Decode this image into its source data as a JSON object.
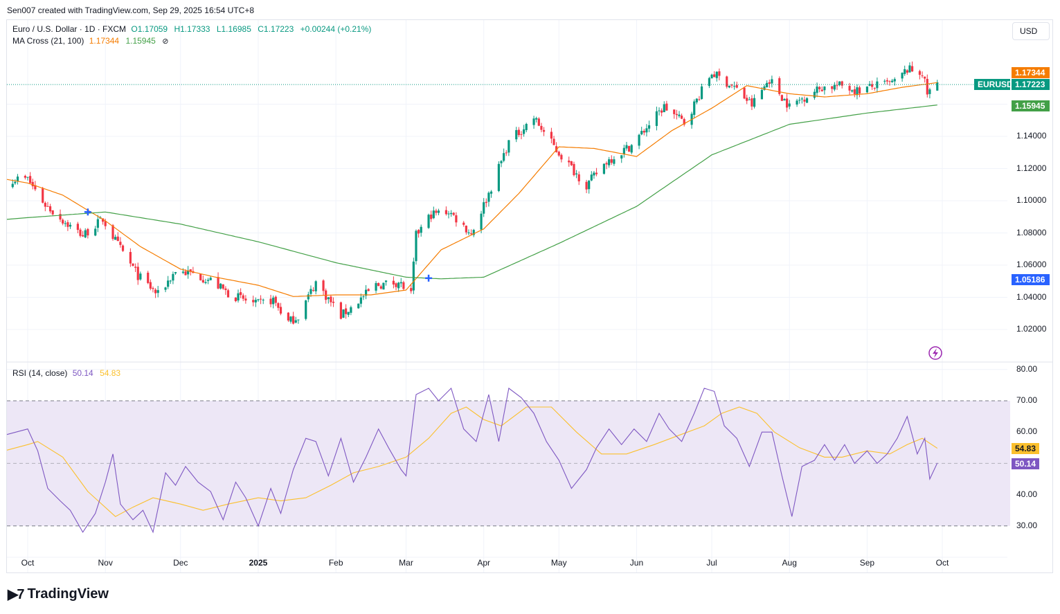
{
  "header": {
    "credit": "Sen007 created with TradingView.com, Sep 29, 2025 16:54 UTC+8"
  },
  "symbol": {
    "name": "Euro / U.S. Dollar · 1D · FXCM",
    "open": "O1.17059",
    "high": "H1.17333",
    "low": "L1.16985",
    "close": "C1.17223",
    "change": "+0.00244 (+0.21%)"
  },
  "ma_legend": {
    "label": "MA Cross (21, 100)",
    "fast": "1.17344",
    "slow": "1.15945",
    "icon": "hidden-eye-icon"
  },
  "rsi_legend": {
    "label": "RSI (14, close)",
    "rsi": "50.14",
    "ma": "54.83"
  },
  "currency_button": "USD",
  "price_tags": {
    "fast_ma": "1.17344",
    "symbol": "EURUSD",
    "last": "1.17223",
    "slow_ma": "1.15945",
    "cross": "1.05186",
    "rsi": "50.14",
    "rsi_ma": "54.83"
  },
  "colors": {
    "up": "#089981",
    "down": "#f23645",
    "fast_ma": "#f57c00",
    "slow_ma": "#43a047",
    "rsi": "#7e57c2",
    "rsi_ma": "#fbc02d",
    "rsi_band": "#ede7f6",
    "cross": "#2962ff"
  },
  "brand": "TradingView",
  "chart_data": [
    {
      "type": "candlestick",
      "title": "Euro / U.S. Dollar · 1D · FXCM",
      "y_ticks": [
        "1.14000",
        "1.12000",
        "1.10000",
        "1.08000",
        "1.06000",
        "1.04000",
        "1.02000"
      ],
      "ylim": [
        1.0075,
        1.1875
      ],
      "x_ticks": [
        "Oct",
        "Nov",
        "Dec",
        "2025",
        "Feb",
        "Mar",
        "Apr",
        "May",
        "Jun",
        "Jul",
        "Aug",
        "Sep",
        "Oct"
      ],
      "series": [
        {
          "name": "EURUSD",
          "close_anchors": [
            [
              "2024-10-01",
              1.1135
            ],
            [
              "2024-10-08",
              1.0975
            ],
            [
              "2024-10-16",
              1.0865
            ],
            [
              "2024-10-23",
              1.0785
            ],
            [
              "2024-10-31",
              1.0885
            ],
            [
              "2024-11-06",
              1.0725
            ],
            [
              "2024-11-14",
              1.0535
            ],
            [
              "2024-11-22",
              1.0415
            ],
            [
              "2024-11-29",
              1.0565
            ],
            [
              "2024-12-06",
              1.0545
            ],
            [
              "2024-12-13",
              1.0505
            ],
            [
              "2024-12-20",
              1.0425
            ],
            [
              "2024-12-31",
              1.0355
            ],
            [
              "2025-01-07",
              1.0385
            ],
            [
              "2025-01-13",
              1.0245
            ],
            [
              "2025-01-17",
              1.0285
            ],
            [
              "2025-01-24",
              1.0495
            ],
            [
              "2025-02-03",
              1.0285
            ],
            [
              "2025-02-07",
              1.0335
            ],
            [
              "2025-02-17",
              1.0475
            ],
            [
              "2025-02-26",
              1.0495
            ],
            [
              "2025-03-03",
              1.0415
            ],
            [
              "2025-03-05",
              1.0785
            ],
            [
              "2025-03-11",
              1.0915
            ],
            [
              "2025-03-18",
              1.0935
            ],
            [
              "2025-03-27",
              1.0795
            ],
            [
              "2025-04-03",
              1.1045
            ],
            [
              "2025-04-11",
              1.1365
            ],
            [
              "2025-04-21",
              1.1515
            ],
            [
              "2025-04-30",
              1.1315
            ],
            [
              "2025-05-12",
              1.1095
            ],
            [
              "2025-05-20",
              1.1245
            ],
            [
              "2025-05-30",
              1.1345
            ],
            [
              "2025-06-12",
              1.1585
            ],
            [
              "2025-06-20",
              1.1485
            ],
            [
              "2025-07-01",
              1.1795
            ],
            [
              "2025-07-10",
              1.1705
            ],
            [
              "2025-07-17",
              1.1595
            ],
            [
              "2025-07-24",
              1.1755
            ],
            [
              "2025-08-01",
              1.1585
            ],
            [
              "2025-08-08",
              1.1655
            ],
            [
              "2025-08-14",
              1.1705
            ],
            [
              "2025-08-22",
              1.1715
            ],
            [
              "2025-08-28",
              1.1685
            ],
            [
              "2025-09-05",
              1.1715
            ],
            [
              "2025-09-12",
              1.1735
            ],
            [
              "2025-09-17",
              1.1815
            ],
            [
              "2025-09-23",
              1.1795
            ],
            [
              "2025-09-25",
              1.1665
            ],
            [
              "2025-09-29",
              1.1722
            ]
          ]
        },
        {
          "name": "MA 21",
          "values": [
            [
              "2024-10-01",
              1.111
            ],
            [
              "2024-10-15",
              1.1035
            ],
            [
              "2024-11-01",
              1.0875
            ],
            [
              "2024-11-15",
              1.0715
            ],
            [
              "2024-12-01",
              1.0575
            ],
            [
              "2024-12-15",
              1.0525
            ],
            [
              "2025-01-01",
              1.0475
            ],
            [
              "2025-01-15",
              1.0405
            ],
            [
              "2025-02-01",
              1.0415
            ],
            [
              "2025-02-15",
              1.0415
            ],
            [
              "2025-03-01",
              1.0445
            ],
            [
              "2025-03-15",
              1.0695
            ],
            [
              "2025-04-01",
              1.0825
            ],
            [
              "2025-04-15",
              1.1045
            ],
            [
              "2025-05-01",
              1.1335
            ],
            [
              "2025-05-15",
              1.1325
            ],
            [
              "2025-06-01",
              1.1275
            ],
            [
              "2025-06-15",
              1.1435
            ],
            [
              "2025-07-01",
              1.1575
            ],
            [
              "2025-07-15",
              1.1715
            ],
            [
              "2025-08-01",
              1.1665
            ],
            [
              "2025-08-15",
              1.1645
            ],
            [
              "2025-09-01",
              1.1665
            ],
            [
              "2025-09-15",
              1.1705
            ],
            [
              "2025-09-29",
              1.1734
            ]
          ]
        },
        {
          "name": "MA 100",
          "values": [
            [
              "2024-10-01",
              1.0895
            ],
            [
              "2024-11-01",
              1.093
            ],
            [
              "2024-12-01",
              1.0855
            ],
            [
              "2025-01-01",
              1.0745
            ],
            [
              "2025-02-01",
              1.0615
            ],
            [
              "2025-03-01",
              1.0525
            ],
            [
              "2025-03-15",
              1.0515
            ],
            [
              "2025-04-01",
              1.0525
            ],
            [
              "2025-05-01",
              1.0735
            ],
            [
              "2025-06-01",
              1.0965
            ],
            [
              "2025-07-01",
              1.1285
            ],
            [
              "2025-08-01",
              1.1475
            ],
            [
              "2025-09-01",
              1.1545
            ],
            [
              "2025-09-29",
              1.1595
            ]
          ]
        }
      ],
      "crosses": [
        [
          "2024-10-25",
          1.093
        ],
        [
          "2025-03-10",
          1.0519
        ]
      ]
    },
    {
      "type": "line",
      "title": "RSI (14, close)",
      "y_ticks": [
        "80.00",
        "70.00",
        "60.00",
        "50.00",
        "40.00",
        "30.00"
      ],
      "ylim": [
        20,
        80
      ],
      "bands": [
        30,
        70
      ],
      "midline": 50,
      "series": [
        {
          "name": "RSI",
          "values": [
            [
              "2024-10-01",
              61
            ],
            [
              "2024-10-05",
              54
            ],
            [
              "2024-10-09",
              42
            ],
            [
              "2024-10-14",
              38
            ],
            [
              "2024-10-18",
              35
            ],
            [
              "2024-10-23",
              28
            ],
            [
              "2024-10-28",
              34
            ],
            [
              "2024-11-01",
              44
            ],
            [
              "2024-11-04",
              53
            ],
            [
              "2024-11-07",
              37
            ],
            [
              "2024-11-12",
              32
            ],
            [
              "2024-11-16",
              35
            ],
            [
              "2024-11-20",
              28
            ],
            [
              "2024-11-25",
              47
            ],
            [
              "2024-11-29",
              43
            ],
            [
              "2024-12-03",
              49
            ],
            [
              "2024-12-08",
              44
            ],
            [
              "2024-12-13",
              41
            ],
            [
              "2024-12-18",
              32
            ],
            [
              "2024-12-23",
              44
            ],
            [
              "2024-12-27",
              39
            ],
            [
              "2025-01-01",
              30
            ],
            [
              "2025-01-06",
              42
            ],
            [
              "2025-01-10",
              34
            ],
            [
              "2025-01-15",
              48
            ],
            [
              "2025-01-20",
              58
            ],
            [
              "2025-01-24",
              57
            ],
            [
              "2025-01-29",
              46
            ],
            [
              "2025-02-03",
              58
            ],
            [
              "2025-02-08",
              44
            ],
            [
              "2025-02-13",
              52
            ],
            [
              "2025-02-18",
              61
            ],
            [
              "2025-02-22",
              55
            ],
            [
              "2025-02-27",
              48
            ],
            [
              "2025-03-01",
              46
            ],
            [
              "2025-03-05",
              72
            ],
            [
              "2025-03-10",
              74
            ],
            [
              "2025-03-14",
              70
            ],
            [
              "2025-03-19",
              74
            ],
            [
              "2025-03-24",
              61
            ],
            [
              "2025-03-29",
              57
            ],
            [
              "2025-04-03",
              72
            ],
            [
              "2025-04-07",
              57
            ],
            [
              "2025-04-11",
              74
            ],
            [
              "2025-04-16",
              71
            ],
            [
              "2025-04-21",
              66
            ],
            [
              "2025-04-26",
              57
            ],
            [
              "2025-05-01",
              51
            ],
            [
              "2025-05-06",
              42
            ],
            [
              "2025-05-12",
              48
            ],
            [
              "2025-05-16",
              55
            ],
            [
              "2025-05-21",
              61
            ],
            [
              "2025-05-26",
              56
            ],
            [
              "2025-05-31",
              61
            ],
            [
              "2025-06-05",
              57
            ],
            [
              "2025-06-10",
              66
            ],
            [
              "2025-06-14",
              61
            ],
            [
              "2025-06-19",
              57
            ],
            [
              "2025-06-24",
              66
            ],
            [
              "2025-06-28",
              74
            ],
            [
              "2025-07-02",
              73
            ],
            [
              "2025-07-06",
              62
            ],
            [
              "2025-07-11",
              58
            ],
            [
              "2025-07-16",
              49
            ],
            [
              "2025-07-21",
              60
            ],
            [
              "2025-07-25",
              60
            ],
            [
              "2025-07-29",
              46
            ],
            [
              "2025-08-02",
              33
            ],
            [
              "2025-08-06",
              49
            ],
            [
              "2025-08-11",
              51
            ],
            [
              "2025-08-15",
              56
            ],
            [
              "2025-08-19",
              51
            ],
            [
              "2025-08-23",
              56
            ],
            [
              "2025-08-27",
              50
            ],
            [
              "2025-09-01",
              54
            ],
            [
              "2025-09-05",
              50
            ],
            [
              "2025-09-09",
              53
            ],
            [
              "2025-09-13",
              58
            ],
            [
              "2025-09-17",
              65
            ],
            [
              "2025-09-21",
              53
            ],
            [
              "2025-09-24",
              58
            ],
            [
              "2025-09-26",
              45
            ],
            [
              "2025-09-29",
              50.14
            ]
          ]
        },
        {
          "name": "RSI MA",
          "values": [
            [
              "2024-10-01",
              56
            ],
            [
              "2024-10-05",
              57
            ],
            [
              "2024-10-15",
              52
            ],
            [
              "2024-10-25",
              41
            ],
            [
              "2024-11-05",
              33
            ],
            [
              "2024-11-12",
              36
            ],
            [
              "2024-11-20",
              39
            ],
            [
              "2024-12-01",
              37
            ],
            [
              "2024-12-10",
              35
            ],
            [
              "2024-12-20",
              37
            ],
            [
              "2025-01-01",
              39
            ],
            [
              "2025-01-10",
              38
            ],
            [
              "2025-01-20",
              39
            ],
            [
              "2025-01-30",
              43
            ],
            [
              "2025-02-08",
              47
            ],
            [
              "2025-02-18",
              49
            ],
            [
              "2025-03-01",
              52
            ],
            [
              "2025-03-10",
              58
            ],
            [
              "2025-03-19",
              66
            ],
            [
              "2025-03-25",
              68
            ],
            [
              "2025-04-01",
              64
            ],
            [
              "2025-04-08",
              62
            ],
            [
              "2025-04-18",
              68
            ],
            [
              "2025-04-28",
              68
            ],
            [
              "2025-05-08",
              60
            ],
            [
              "2025-05-18",
              53
            ],
            [
              "2025-05-28",
              53
            ],
            [
              "2025-06-08",
              56
            ],
            [
              "2025-06-18",
              59
            ],
            [
              "2025-06-28",
              62
            ],
            [
              "2025-07-05",
              66
            ],
            [
              "2025-07-12",
              68
            ],
            [
              "2025-07-19",
              66
            ],
            [
              "2025-07-26",
              60
            ],
            [
              "2025-08-05",
              55
            ],
            [
              "2025-08-15",
              52
            ],
            [
              "2025-08-22",
              52
            ],
            [
              "2025-09-01",
              54
            ],
            [
              "2025-09-10",
              53
            ],
            [
              "2025-09-17",
              56
            ],
            [
              "2025-09-23",
              58
            ],
            [
              "2025-09-29",
              54.83
            ]
          ]
        }
      ]
    }
  ]
}
